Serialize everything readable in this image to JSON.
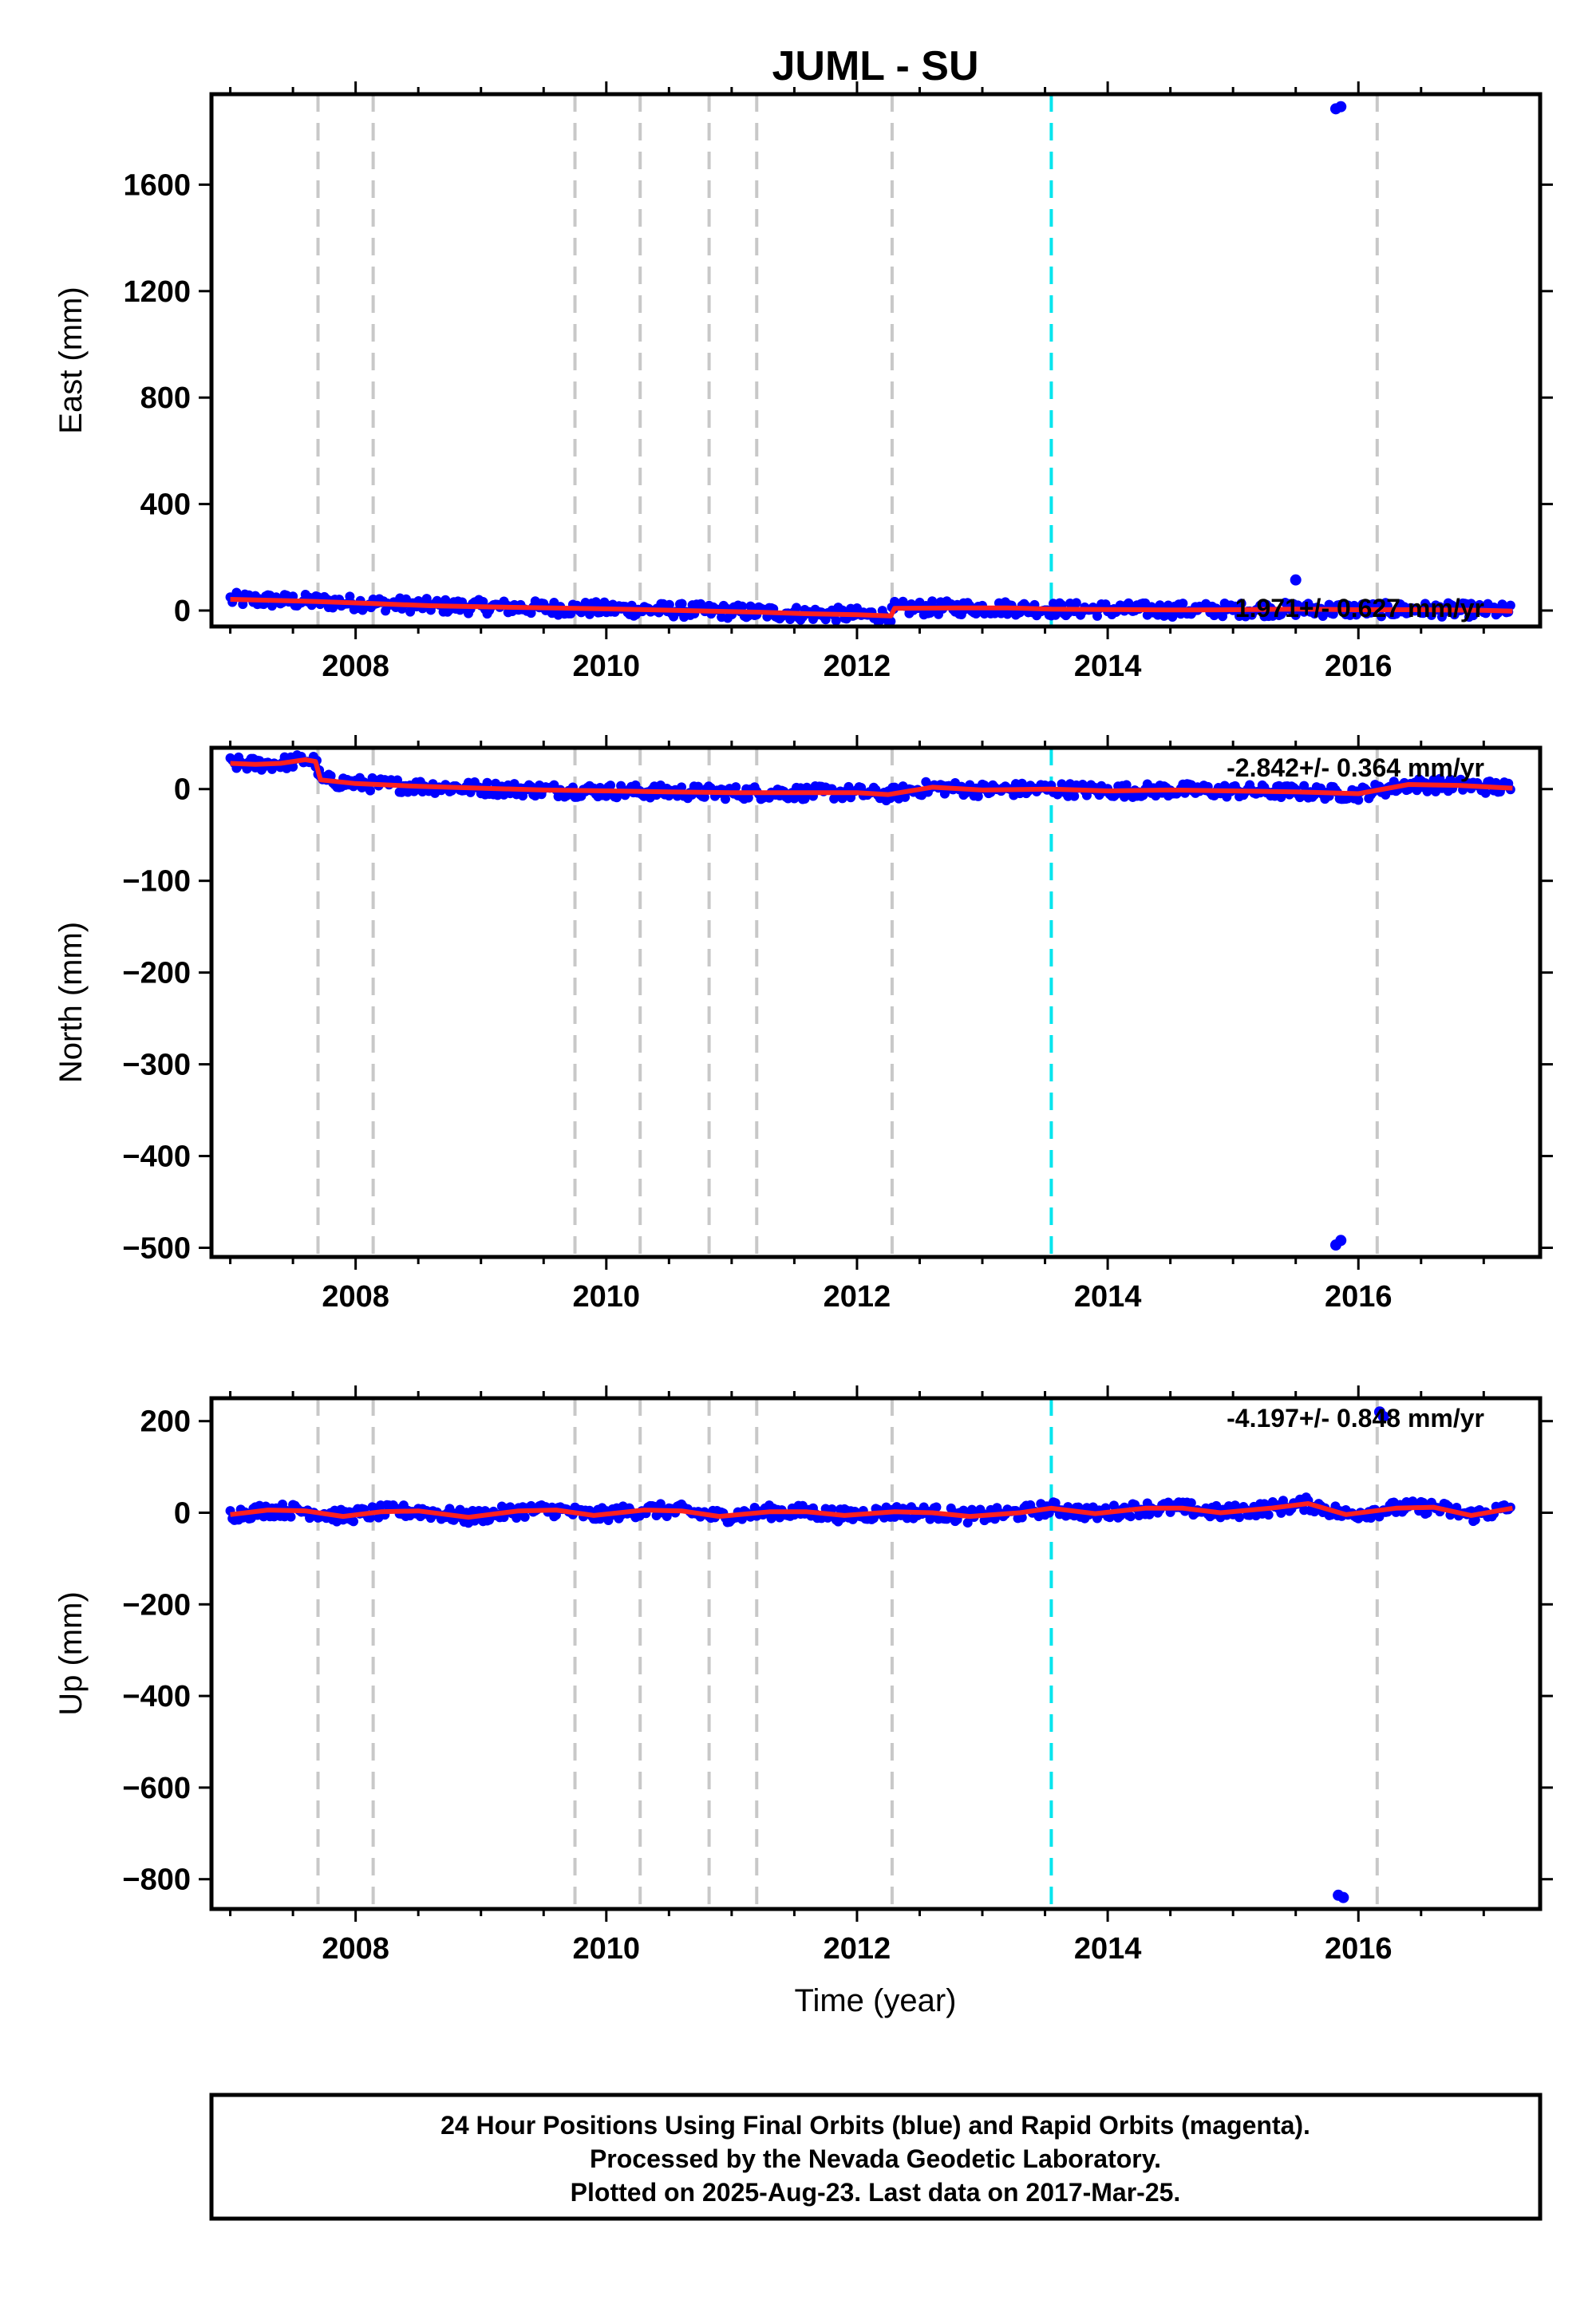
{
  "chart_data": {
    "title": "JUML - SU",
    "type": "scatter",
    "xlabel": "Time (year)",
    "xlim": [
      2006.85,
      2017.45
    ],
    "xticks_major": [
      2008,
      2010,
      2012,
      2014,
      2016
    ],
    "xtick_labels": [
      "2008",
      "2010",
      "2012",
      "2014",
      "2016"
    ],
    "equipment_change_lines": {
      "color": "#c8c8c8",
      "style": "dashed",
      "x": [
        2007.7,
        2008.14,
        2009.75,
        2010.27,
        2010.82,
        2011.2,
        2012.28,
        2016.15
      ]
    },
    "event_lines": {
      "color": "#00e5ee",
      "style": "dashed",
      "x": [
        2013.55
      ]
    },
    "point_color": "#0000ff",
    "model_color": "#ff2020",
    "panels": [
      {
        "key": "east",
        "ylabel": "East (mm)",
        "ylim": [
          -60,
          1940
        ],
        "yticks": [
          0,
          400,
          800,
          1200,
          1600
        ],
        "ytick_labels": [
          "0",
          "400",
          "800",
          "1200",
          "1600"
        ],
        "rate_label": "1.971+/- 0.627 mm/yr",
        "series": [
          {
            "x": [
              2007.0,
              2007.7,
              2008.14,
              2008.6,
              2009.0,
              2009.75,
              2010.27,
              2010.82,
              2011.2,
              2011.6,
              2012.0,
              2012.27,
              2012.3,
              2012.8,
              2013.2,
              2013.55,
              2014.0,
              2014.5,
              2015.0,
              2015.5,
              2016.0,
              2016.5,
              2017.0,
              2017.23
            ],
            "y": [
              42,
              34,
              26,
              18,
              14,
              8,
              4,
              -2,
              -6,
              -12,
              -16,
              -20,
              8,
              10,
              10,
              5,
              4,
              2,
              3,
              5,
              3,
              3,
              1,
              -2
            ]
          }
        ],
        "outliers": [
          {
            "x": 2015.5,
            "y": 115
          },
          {
            "x": 2015.82,
            "y": 1885
          },
          {
            "x": 2015.86,
            "y": 1893
          }
        ]
      },
      {
        "key": "north",
        "ylabel": "North (mm)",
        "ylim": [
          -510,
          45
        ],
        "yticks": [
          -500,
          -400,
          -300,
          -200,
          -100,
          0
        ],
        "ytick_labels": [
          "−500",
          "−400",
          "−300",
          "−200",
          "−100",
          "0"
        ],
        "rate_label": "-2.842+/- 0.364 mm/yr",
        "series": [
          {
            "x": [
              2007.0,
              2007.2,
              2007.4,
              2007.6,
              2007.68,
              2007.72,
              2008.0,
              2008.5,
              2009.0,
              2009.5,
              2010.0,
              2010.5,
              2011.0,
              2011.5,
              2012.0,
              2012.25,
              2012.6,
              2013.0,
              2013.55,
              2014.0,
              2014.5,
              2015.0,
              2015.5,
              2016.0,
              2016.4,
              2016.8,
              2017.23
            ],
            "y": [
              28,
              27,
              28,
              32,
              30,
              10,
              6,
              3,
              1,
              -1,
              -2,
              -3,
              -4,
              -4,
              -4,
              -6,
              2,
              -1,
              0,
              -2,
              -1,
              -2,
              -3,
              -5,
              5,
              4,
              1
            ]
          }
        ],
        "outliers": [
          {
            "x": 2015.82,
            "y": -497
          },
          {
            "x": 2015.86,
            "y": -492
          }
        ]
      },
      {
        "key": "up",
        "ylabel": "Up (mm)",
        "ylim": [
          -865,
          250
        ],
        "yticks": [
          -800,
          -600,
          -400,
          -200,
          0,
          200
        ],
        "ytick_labels": [
          "−800",
          "−600",
          "−400",
          "−200",
          "0",
          "200"
        ],
        "rate_label": "-4.197+/- 0.848 mm/yr",
        "series": [
          {
            "x": [
              2007.0,
              2007.3,
              2007.6,
              2007.9,
              2008.2,
              2008.5,
              2008.9,
              2009.3,
              2009.6,
              2009.9,
              2010.3,
              2010.6,
              2010.9,
              2011.3,
              2011.6,
              2011.9,
              2012.3,
              2012.6,
              2012.9,
              2013.3,
              2013.55,
              2013.9,
              2014.3,
              2014.6,
              2014.9,
              2015.3,
              2015.6,
              2015.9,
              2016.3,
              2016.6,
              2016.9,
              2017.23
            ],
            "y": [
              -4,
              6,
              4,
              -8,
              2,
              4,
              -10,
              4,
              6,
              -6,
              6,
              4,
              -8,
              2,
              2,
              -6,
              2,
              0,
              -8,
              0,
              10,
              -2,
              10,
              10,
              0,
              10,
              20,
              -4,
              10,
              12,
              -6,
              10
            ]
          }
        ],
        "outliers": [
          {
            "x": 2015.84,
            "y": -835
          },
          {
            "x": 2015.88,
            "y": -840
          },
          {
            "x": 2016.17,
            "y": 220
          },
          {
            "x": 2016.2,
            "y": 210
          }
        ]
      }
    ]
  },
  "footer": {
    "line1": "24 Hour Positions Using Final Orbits (blue) and Rapid Orbits (magenta).",
    "line2": "Processed by the Nevada Geodetic Laboratory.",
    "line3": "Plotted on 2025-Aug-23. Last data on 2017-Mar-25."
  }
}
